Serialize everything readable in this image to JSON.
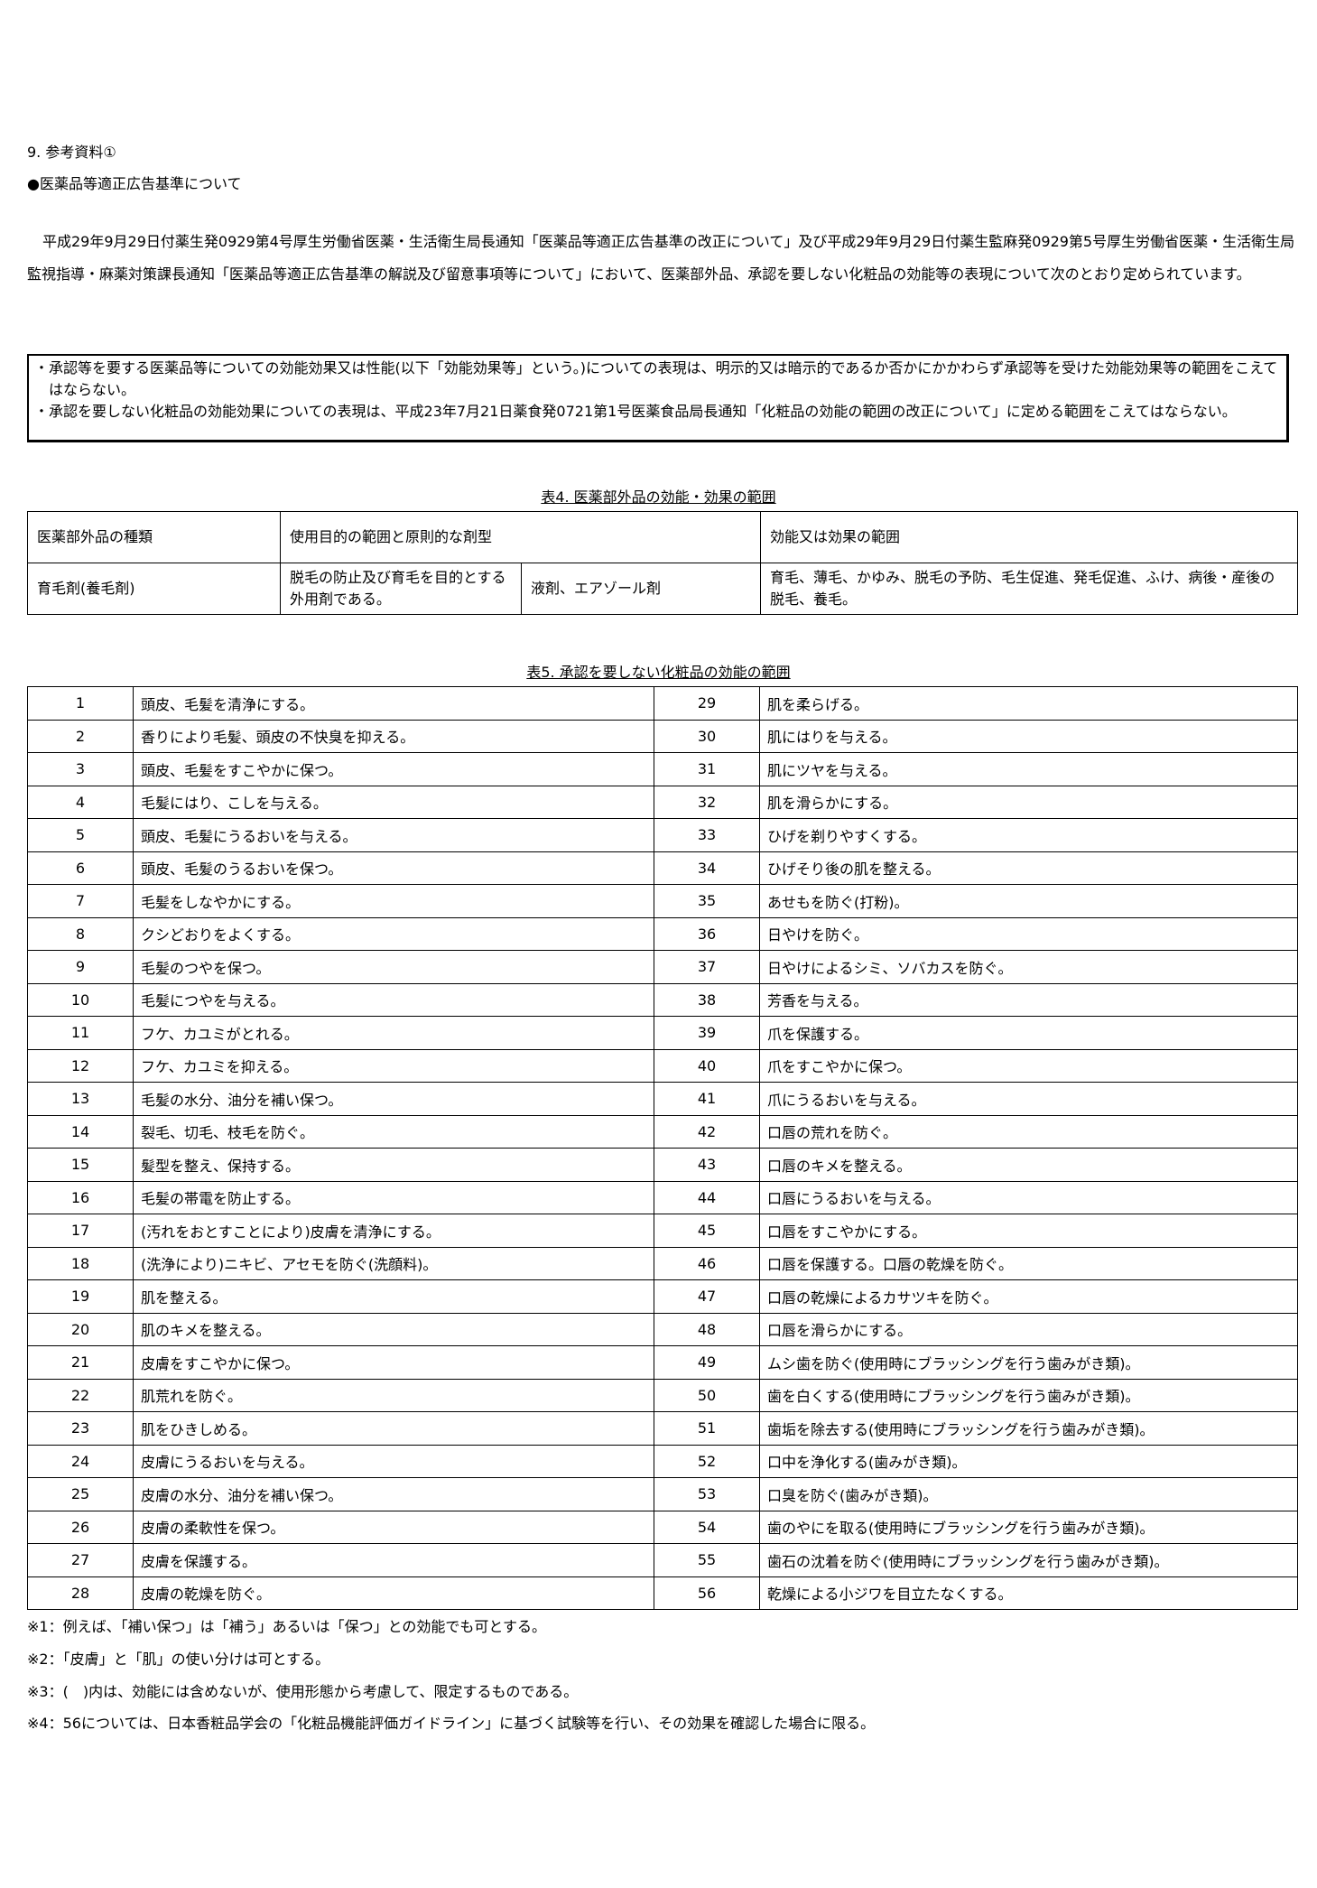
{
  "section_title": "9. 参考資料①",
  "subtitle": "●医薬品等適正広告基準について",
  "paragraph": "平成29年9月29日付薬生発0929第4号厚生労働省医薬・生活衛生局長通知「医薬品等適正広告基準の改正について」及び平成29年9月29日付薬生監麻発0929第5号厚生労働省医薬・生活衛生局監視指導・麻薬対策課長通知「医薬品等適正広告基準の解説及び留意事項等について」において、医薬部外品、承認を要しない化粧品の効能等の表現について次のとおり定められています。",
  "box_items": [
    "・承認等を要する医薬品等についての効能効果又は性能(以下「効能効果等」という。)についての表現は、明示的又は暗示的であるか否かにかかわらず承認等を受けた効能効果等の範囲をこえてはならない。",
    "・承認を要しない化粧品の効能効果についての表現は、平成23年7月21日薬食発0721第1号医薬食品局長通知「化粧品の効能の範囲の改正について」に定める範囲をこえてはならない。"
  ],
  "table4": {
    "caption": "表4. 医薬部外品の効能・効果の範囲",
    "headers": [
      "医薬部外品の種類",
      "使用目的の範囲と原則的な剤型",
      "効能又は効果の範囲"
    ],
    "row": [
      "育毛剤(養毛剤)",
      "脱毛の防止及び育毛を目的とする外用剤である。",
      "液剤、エアゾール剤",
      "育毛、薄毛、かゆみ、脱毛の予防、毛生促進、発毛促進、ふけ、病後・産後の脱毛、養毛。"
    ]
  },
  "table5": {
    "caption": "表5. 承認を要しない化粧品の効能の範囲",
    "items": [
      "頭皮、毛髪を清浄にする。",
      "香りにより毛髪、頭皮の不快臭を抑える。",
      "頭皮、毛髪をすこやかに保つ。",
      "毛髪にはり、こしを与える。",
      "頭皮、毛髪にうるおいを与える。",
      "頭皮、毛髪のうるおいを保つ。",
      "毛髪をしなやかにする。",
      "クシどおりをよくする。",
      "毛髪のつやを保つ。",
      "毛髪につやを与える。",
      "フケ、カユミがとれる。",
      "フケ、カユミを抑える。",
      "毛髪の水分、油分を補い保つ。",
      "裂毛、切毛、枝毛を防ぐ。",
      "髪型を整え、保持する。",
      "毛髪の帯電を防止する。",
      "(汚れをおとすことにより)皮膚を清浄にする。",
      "(洗浄により)ニキビ、アセモを防ぐ(洗顔料)。",
      "肌を整える。",
      "肌のキメを整える。",
      "皮膚をすこやかに保つ。",
      "肌荒れを防ぐ。",
      "肌をひきしめる。",
      "皮膚にうるおいを与える。",
      "皮膚の水分、油分を補い保つ。",
      "皮膚の柔軟性を保つ。",
      "皮膚を保護する。",
      "皮膚の乾燥を防ぐ。",
      "肌を柔らげる。",
      "肌にはりを与える。",
      "肌にツヤを与える。",
      "肌を滑らかにする。",
      "ひげを剃りやすくする。",
      "ひげそり後の肌を整える。",
      "あせもを防ぐ(打粉)。",
      "日やけを防ぐ。",
      "日やけによるシミ、ソバカスを防ぐ。",
      "芳香を与える。",
      "爪を保護する。",
      "爪をすこやかに保つ。",
      "爪にうるおいを与える。",
      "口唇の荒れを防ぐ。",
      "口唇のキメを整える。",
      "口唇にうるおいを与える。",
      "口唇をすこやかにする。",
      "口唇を保護する。口唇の乾燥を防ぐ。",
      "口唇の乾燥によるカサツキを防ぐ。",
      "口唇を滑らかにする。",
      "ムシ歯を防ぐ(使用時にブラッシングを行う歯みがき類)。",
      "歯を白くする(使用時にブラッシングを行う歯みがき類)。",
      "歯垢を除去する(使用時にブラッシングを行う歯みがき類)。",
      "口中を浄化する(歯みがき類)。",
      "口臭を防ぐ(歯みがき類)。",
      "歯のやにを取る(使用時にブラッシングを行う歯みがき類)。",
      "歯石の沈着を防ぐ(使用時にブラッシングを行う歯みがき類)。",
      "乾燥による小ジワを目立たなくする。"
    ]
  },
  "notes": [
    "※1：例えば、「補い保つ」は「補う」あるいは「保つ」との効能でも可とする。",
    "※2：「皮膚」と「肌」の使い分けは可とする。",
    "※3：(　)内は、効能には含めないが、使用形態から考慮して、限定するものである。",
    "※4：56については、日本香粧品学会の「化粧品機能評価ガイドライン」に基づく試験等を行い、その効果を確認した場合に限る。"
  ]
}
